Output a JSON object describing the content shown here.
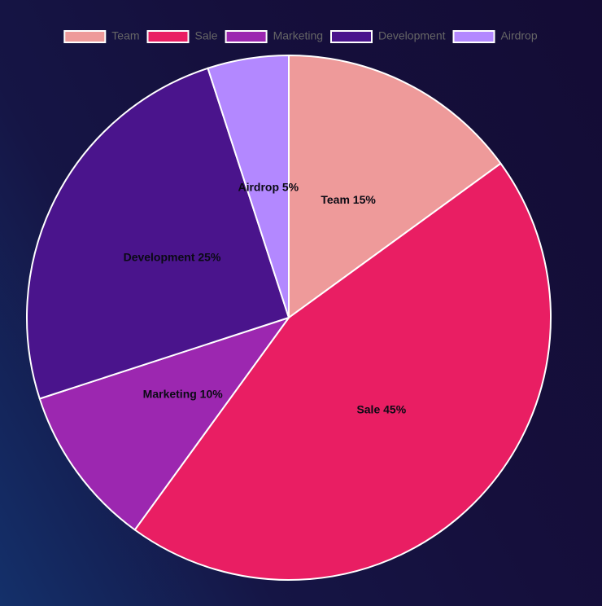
{
  "chart_data": {
    "type": "pie",
    "categories": [
      "Team",
      "Sale",
      "Marketing",
      "Development",
      "Airdrop"
    ],
    "values": [
      15,
      45,
      10,
      25,
      5
    ],
    "colors": [
      "#ee9a9a",
      "#e91e63",
      "#9c27b0",
      "#4a148c",
      "#b388ff"
    ],
    "slice_labels": [
      "Team 15%",
      "Sale 45%",
      "Marketing 10%",
      "Development 25%",
      "Airdrop 5%"
    ],
    "legend": {
      "position": "top",
      "entries": [
        "Team",
        "Sale",
        "Marketing",
        "Development",
        "Airdrop"
      ]
    },
    "border_color": "#ffffff",
    "start_angle": "top, clockwise"
  }
}
